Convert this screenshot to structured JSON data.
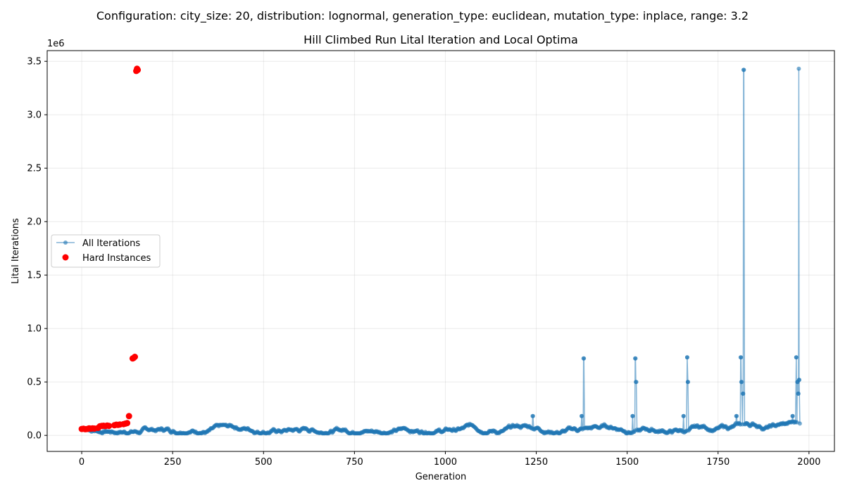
{
  "suptitle": "Configuration: city_size: 20, distribution: lognormal, generation_type: euclidean, mutation_type: inplace, range: 3.2",
  "chart_data": {
    "type": "scatter",
    "title": "Hill Climbed Run Lital Iteration and Local Optima",
    "xlabel": "Generation",
    "ylabel": "Lital Iterations",
    "y_offset_label": "1e6",
    "xlim": [
      -95,
      2070
    ],
    "ylim": [
      -150000,
      3600000
    ],
    "x_ticks": [
      0,
      250,
      500,
      750,
      1000,
      1250,
      1500,
      1750,
      2000
    ],
    "x_tick_labels": [
      "0",
      "250",
      "500",
      "750",
      "1000",
      "1250",
      "1500",
      "1750",
      "2000"
    ],
    "y_ticks": [
      0,
      500000,
      1000000,
      1500000,
      2000000,
      2500000,
      3000000,
      3500000
    ],
    "y_tick_labels": [
      "0.0",
      "0.5",
      "1.0",
      "1.5",
      "2.0",
      "2.5",
      "3.0",
      "3.5"
    ],
    "grid": true,
    "legend_position": "center-left",
    "series": [
      {
        "name": "All Iterations",
        "style": "line-with-markers",
        "color": "#1f77b4",
        "description_points": [
          [
            0,
            60000
          ],
          [
            25,
            45000
          ],
          [
            50,
            70000
          ],
          [
            75,
            55000
          ],
          [
            100,
            75000
          ],
          [
            125,
            60000
          ],
          [
            150,
            45000
          ],
          [
            175,
            65000
          ],
          [
            200,
            60000
          ],
          [
            250,
            80000
          ],
          [
            300,
            55000
          ],
          [
            350,
            70000
          ],
          [
            400,
            60000
          ],
          [
            450,
            75000
          ],
          [
            500,
            65000
          ],
          [
            550,
            70000
          ],
          [
            600,
            60000
          ],
          [
            650,
            80000
          ],
          [
            700,
            65000
          ],
          [
            750,
            75000
          ],
          [
            800,
            70000
          ],
          [
            850,
            80000
          ],
          [
            900,
            65000
          ],
          [
            950,
            80000
          ],
          [
            1000,
            70000
          ],
          [
            1050,
            75000
          ],
          [
            1100,
            80000
          ],
          [
            1150,
            65000
          ],
          [
            1200,
            75000
          ],
          [
            1240,
            180000
          ],
          [
            1250,
            70000
          ],
          [
            1300,
            75000
          ],
          [
            1350,
            80000
          ],
          [
            1375,
            180000
          ],
          [
            1380,
            720000
          ],
          [
            1385,
            60000
          ],
          [
            1450,
            80000
          ],
          [
            1500,
            85000
          ],
          [
            1515,
            180000
          ],
          [
            1522,
            720000
          ],
          [
            1524,
            500000
          ],
          [
            1528,
            60000
          ],
          [
            1600,
            85000
          ],
          [
            1655,
            180000
          ],
          [
            1665,
            730000
          ],
          [
            1667,
            500000
          ],
          [
            1672,
            60000
          ],
          [
            1750,
            90000
          ],
          [
            1800,
            180000
          ],
          [
            1812,
            730000
          ],
          [
            1814,
            500000
          ],
          [
            1818,
            390000
          ],
          [
            1820,
            3420000
          ],
          [
            1825,
            60000
          ],
          [
            1900,
            90000
          ],
          [
            1955,
            180000
          ],
          [
            1965,
            730000
          ],
          [
            1968,
            500000
          ],
          [
            1970,
            390000
          ],
          [
            1972,
            3430000
          ],
          [
            1973,
            520000
          ]
        ]
      },
      {
        "name": "Hard Instances",
        "style": "scatter",
        "color": "#ff0000",
        "points": [
          [
            0,
            60000
          ],
          [
            5,
            62000
          ],
          [
            10,
            58000
          ],
          [
            15,
            60000
          ],
          [
            20,
            65000
          ],
          [
            25,
            63000
          ],
          [
            30,
            66000
          ],
          [
            35,
            64000
          ],
          [
            45,
            70000
          ],
          [
            50,
            85000
          ],
          [
            55,
            88000
          ],
          [
            60,
            90000
          ],
          [
            65,
            87000
          ],
          [
            70,
            92000
          ],
          [
            75,
            89000
          ],
          [
            90,
            95000
          ],
          [
            95,
            100000
          ],
          [
            100,
            98000
          ],
          [
            105,
            102000
          ],
          [
            115,
            105000
          ],
          [
            120,
            110000
          ],
          [
            125,
            115000
          ],
          [
            130,
            180000
          ],
          [
            140,
            720000
          ],
          [
            143,
            725000
          ],
          [
            146,
            735000
          ],
          [
            150,
            3410000
          ],
          [
            152,
            3430000
          ],
          [
            154,
            3420000
          ]
        ]
      }
    ]
  }
}
